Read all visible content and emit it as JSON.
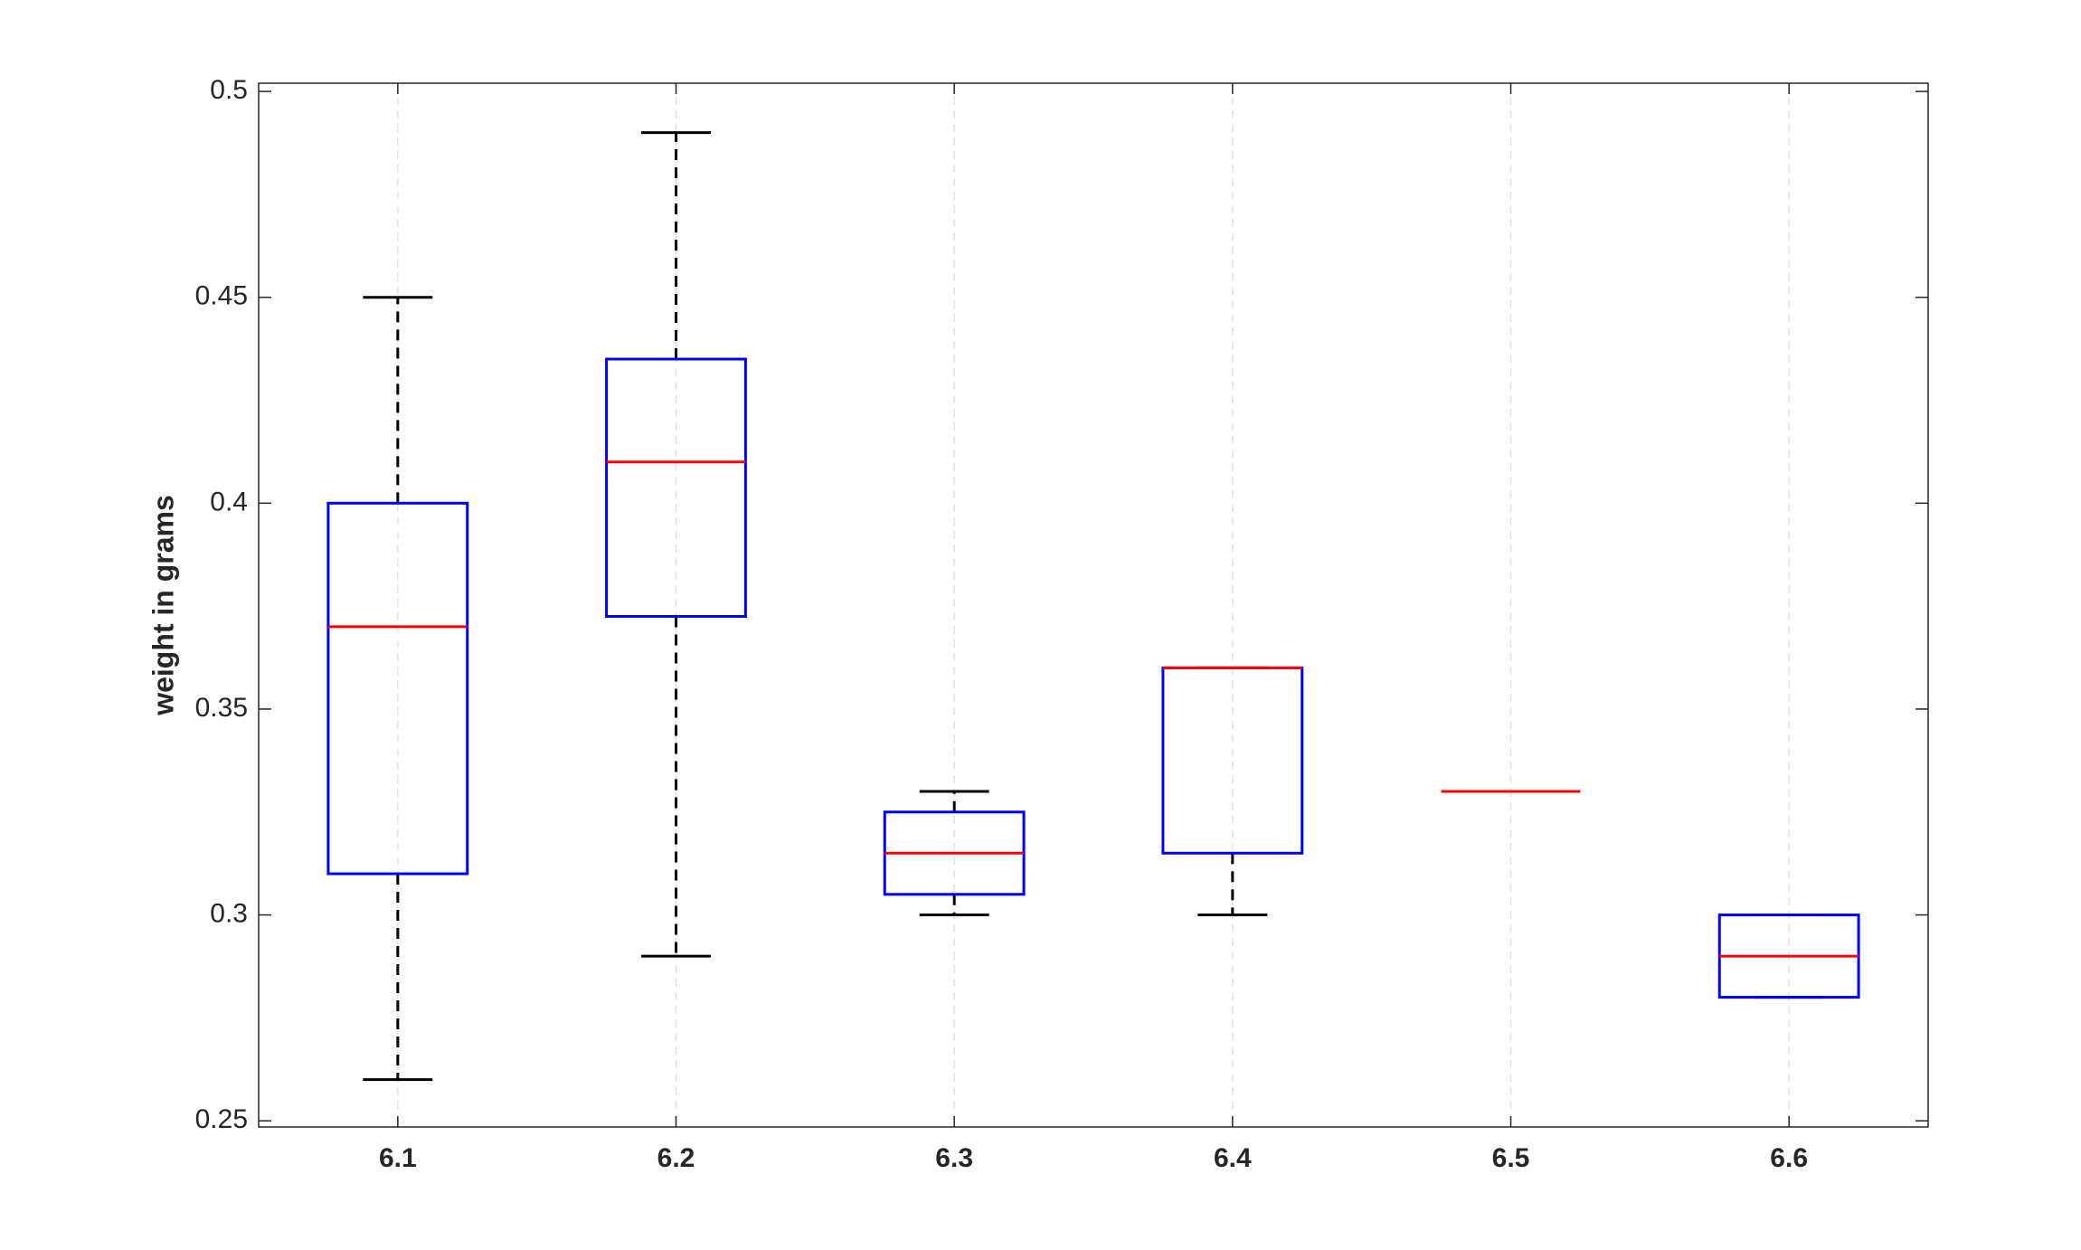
{
  "chart_data": {
    "type": "box",
    "ylabel": "weight in grams",
    "categories": [
      "6.1",
      "6.2",
      "6.3",
      "6.4",
      "6.5",
      "6.6"
    ],
    "boxes": [
      {
        "whislo": 0.26,
        "q1": 0.31,
        "med": 0.37,
        "q3": 0.4,
        "whishi": 0.45
      },
      {
        "whislo": 0.29,
        "q1": 0.3725,
        "med": 0.41,
        "q3": 0.435,
        "whishi": 0.49
      },
      {
        "whislo": 0.3,
        "q1": 0.305,
        "med": 0.315,
        "q3": 0.325,
        "whishi": 0.33
      },
      {
        "whislo": 0.3,
        "q1": 0.315,
        "med": 0.36,
        "q3": 0.36,
        "whishi": 0.36
      },
      {
        "whislo": 0.33,
        "q1": 0.33,
        "med": 0.33,
        "q3": 0.33,
        "whishi": 0.33
      },
      {
        "whislo": 0.28,
        "q1": 0.28,
        "med": 0.29,
        "q3": 0.3,
        "whishi": 0.3
      }
    ],
    "box_color": "#0000ff",
    "median_color": "#ff0000",
    "whisker_color": "#000000",
    "ylim": [
      0.2485,
      0.502
    ],
    "yticks": [
      0.25,
      0.3,
      0.35,
      0.4,
      0.45,
      0.5
    ],
    "grid": "x"
  }
}
